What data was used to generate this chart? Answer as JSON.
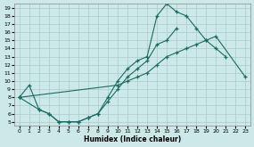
{
  "xlabel": "Humidex (Indice chaleur)",
  "background_color": "#cce8e8",
  "grid_color": "#aacccc",
  "line_color": "#1a6b60",
  "xlim": [
    -0.5,
    23.5
  ],
  "ylim": [
    4.5,
    19.5
  ],
  "xticks": [
    0,
    1,
    2,
    3,
    4,
    5,
    6,
    7,
    8,
    9,
    10,
    11,
    12,
    13,
    14,
    15,
    16,
    17,
    18,
    19,
    20,
    21,
    22,
    23
  ],
  "yticks": [
    5,
    6,
    7,
    8,
    9,
    10,
    11,
    12,
    13,
    14,
    15,
    16,
    17,
    18,
    19
  ],
  "line1_x": [
    0,
    1,
    2,
    3,
    4,
    5,
    6,
    7,
    8,
    9,
    10,
    11,
    12,
    13,
    14,
    15,
    16,
    17,
    18,
    19,
    20,
    21
  ],
  "line1_y": [
    8.0,
    9.5,
    6.5,
    6.0,
    5.0,
    5.0,
    5.0,
    5.5,
    6.0,
    8.0,
    10.0,
    11.5,
    12.5,
    13.0,
    18.0,
    19.5,
    18.5,
    18.0,
    16.5,
    15.0,
    14.0,
    13.0
  ],
  "line2_x": [
    0,
    2,
    3,
    4,
    5,
    6,
    7,
    8,
    9,
    10,
    11,
    12,
    13,
    14,
    15,
    16
  ],
  "line2_y": [
    8.0,
    6.5,
    6.0,
    5.0,
    5.0,
    5.0,
    5.5,
    6.0,
    7.5,
    9.0,
    10.5,
    11.5,
    12.5,
    14.5,
    15.0,
    16.5
  ],
  "line3_x": [
    0,
    10,
    11,
    12,
    13,
    14,
    15,
    16,
    17,
    18,
    19,
    20,
    23
  ],
  "line3_y": [
    8.0,
    9.5,
    10.0,
    10.5,
    11.0,
    12.0,
    13.0,
    13.5,
    14.0,
    14.5,
    15.0,
    15.5,
    10.5
  ]
}
